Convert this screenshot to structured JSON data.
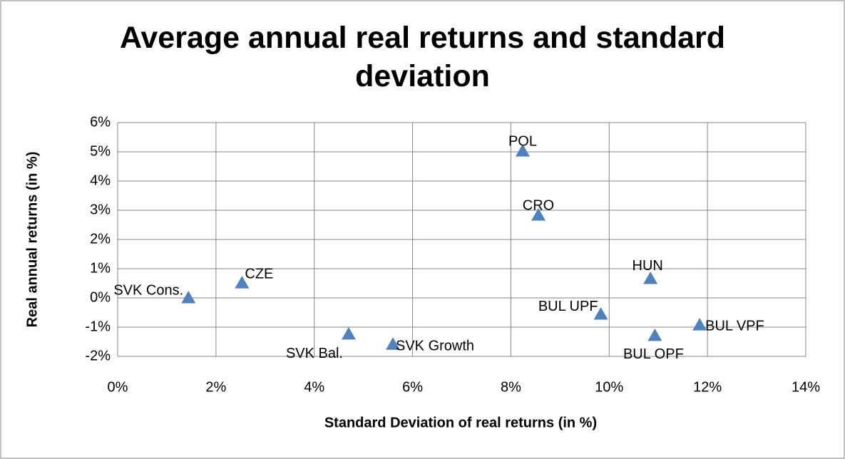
{
  "chart_data": {
    "type": "scatter",
    "title": "Average annual real returns and standard deviation",
    "xlabel": "Standard Deviation of real returns (in %)",
    "ylabel": "Real annual returns (in %)",
    "labels": [
      "SVK Cons.",
      "CZE",
      "SVK Bal.",
      "SVK Growth",
      "POL",
      "CRO",
      "HUN",
      "BUL UPF",
      "BUL OPF",
      "BUL VPF"
    ],
    "x": [
      1.44,
      2.53,
      4.7,
      5.6,
      8.24,
      8.56,
      10.84,
      9.83,
      10.93,
      11.84
    ],
    "y": [
      0.0,
      0.51,
      -1.24,
      -1.59,
      5.02,
      2.83,
      0.66,
      -0.56,
      -1.29,
      -0.93
    ],
    "color": "#4f81bd",
    "xlim": [
      0,
      14
    ],
    "xticks": [
      {
        "value": 0,
        "label": "0%"
      },
      {
        "value": 2,
        "label": "2%"
      },
      {
        "value": 4,
        "label": "4%"
      },
      {
        "value": 6,
        "label": "6%"
      },
      {
        "value": 8,
        "label": "8%"
      },
      {
        "value": 10,
        "label": "10%"
      },
      {
        "value": 12,
        "label": "12%"
      },
      {
        "value": 14,
        "label": "14%"
      }
    ],
    "ylim": [
      -2,
      6
    ],
    "yticks": [
      {
        "value": -2,
        "label": "-2%"
      },
      {
        "value": -1,
        "label": "-1%"
      },
      {
        "value": 0,
        "label": "0%"
      },
      {
        "value": 1,
        "label": "1%"
      },
      {
        "value": 2,
        "label": "2%"
      },
      {
        "value": 3,
        "label": "3%"
      },
      {
        "value": 4,
        "label": "4%"
      },
      {
        "value": 5,
        "label": "5%"
      },
      {
        "value": 6,
        "label": "6%"
      }
    ],
    "grid": true
  }
}
